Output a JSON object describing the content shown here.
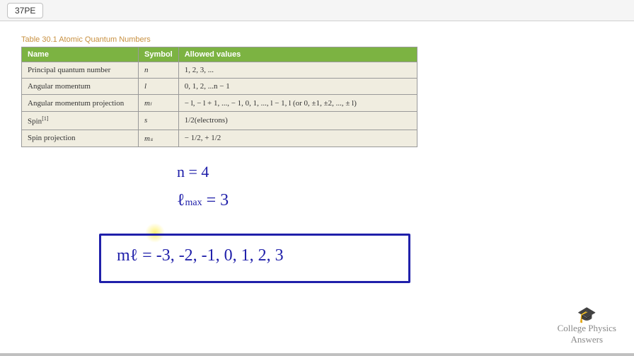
{
  "chip": "37PE",
  "table": {
    "caption": "Table 30.1 Atomic Quantum Numbers",
    "headers": [
      "Name",
      "Symbol",
      "Allowed values"
    ],
    "rows": [
      {
        "name": "Principal quantum number",
        "symbol": "n",
        "values": "1, 2, 3, ..."
      },
      {
        "name": "Angular momentum",
        "symbol": "l",
        "values": "0, 1, 2, ...n − 1"
      },
      {
        "name": "Angular momentum projection",
        "symbol": "mₗ",
        "values": "− l, − l + 1, ..., − 1, 0, 1, ..., l − 1, l (or 0, ±1, ±2, ..., ± l)"
      },
      {
        "name": "Spin",
        "symbol": "s",
        "values": "1/2(electrons)"
      },
      {
        "name": "Spin projection",
        "symbol": "mₛ",
        "values": "− 1/2, + 1/2"
      }
    ]
  },
  "handwriting": {
    "n_eq": "n = 4",
    "l_max": "ℓ",
    "l_max_sub": "max",
    "l_max_eq": " = 3",
    "ml": "mℓ = -3, -2, -1, 0, 1, 2, 3"
  },
  "watermark": {
    "line1": "College Physics",
    "line2": "Answers"
  }
}
